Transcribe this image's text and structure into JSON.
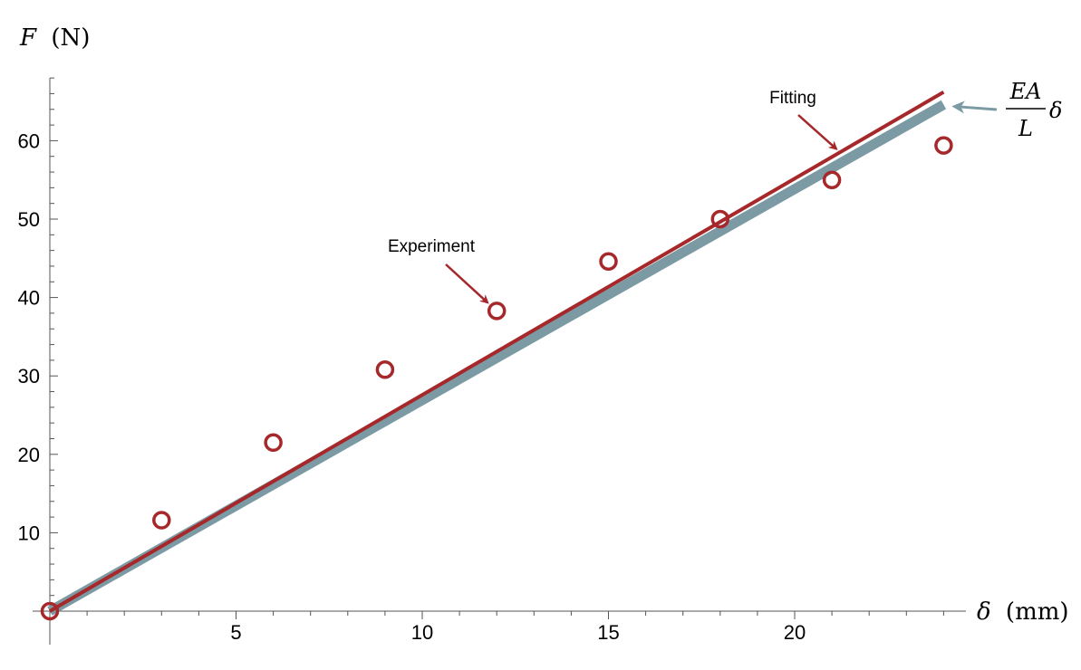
{
  "chart_data": {
    "type": "scatter",
    "xlabel": {
      "symbol": "δ",
      "unit": "(mm)"
    },
    "ylabel": {
      "symbol": "F",
      "unit": "(N)"
    },
    "xlim": [
      0,
      24.5
    ],
    "ylim": [
      0,
      68
    ],
    "x_ticks": [
      5,
      10,
      15,
      20
    ],
    "y_ticks": [
      10,
      20,
      30,
      40,
      50,
      60
    ],
    "grid": false,
    "series": [
      {
        "name": "Experiment",
        "kind": "points",
        "color": "#a6282a",
        "x": [
          0,
          3,
          6,
          9,
          12,
          15,
          18,
          21,
          24
        ],
        "y": [
          0,
          11.6,
          21.5,
          30.8,
          38.3,
          44.6,
          50.0,
          55.0,
          59.4
        ]
      },
      {
        "name": "Fitting",
        "kind": "line",
        "color": "#a6282a",
        "x": [
          0,
          24
        ],
        "y": [
          0,
          66.2
        ]
      },
      {
        "name": "EA/L δ",
        "kind": "line",
        "color": "#7b9aa4",
        "x": [
          0,
          24
        ],
        "y": [
          0,
          64.6
        ]
      }
    ],
    "annotations": [
      {
        "text": "Experiment",
        "target": "point",
        "x": 12,
        "y": 38.3
      },
      {
        "text": "Fitting",
        "target": "fitting-line",
        "x": 21,
        "y": 57.9
      },
      {
        "text_num": "EA",
        "text_den": "L",
        "text_suffix": "δ",
        "target": "theory-line-end",
        "x": 24,
        "y": 64.6
      }
    ]
  }
}
